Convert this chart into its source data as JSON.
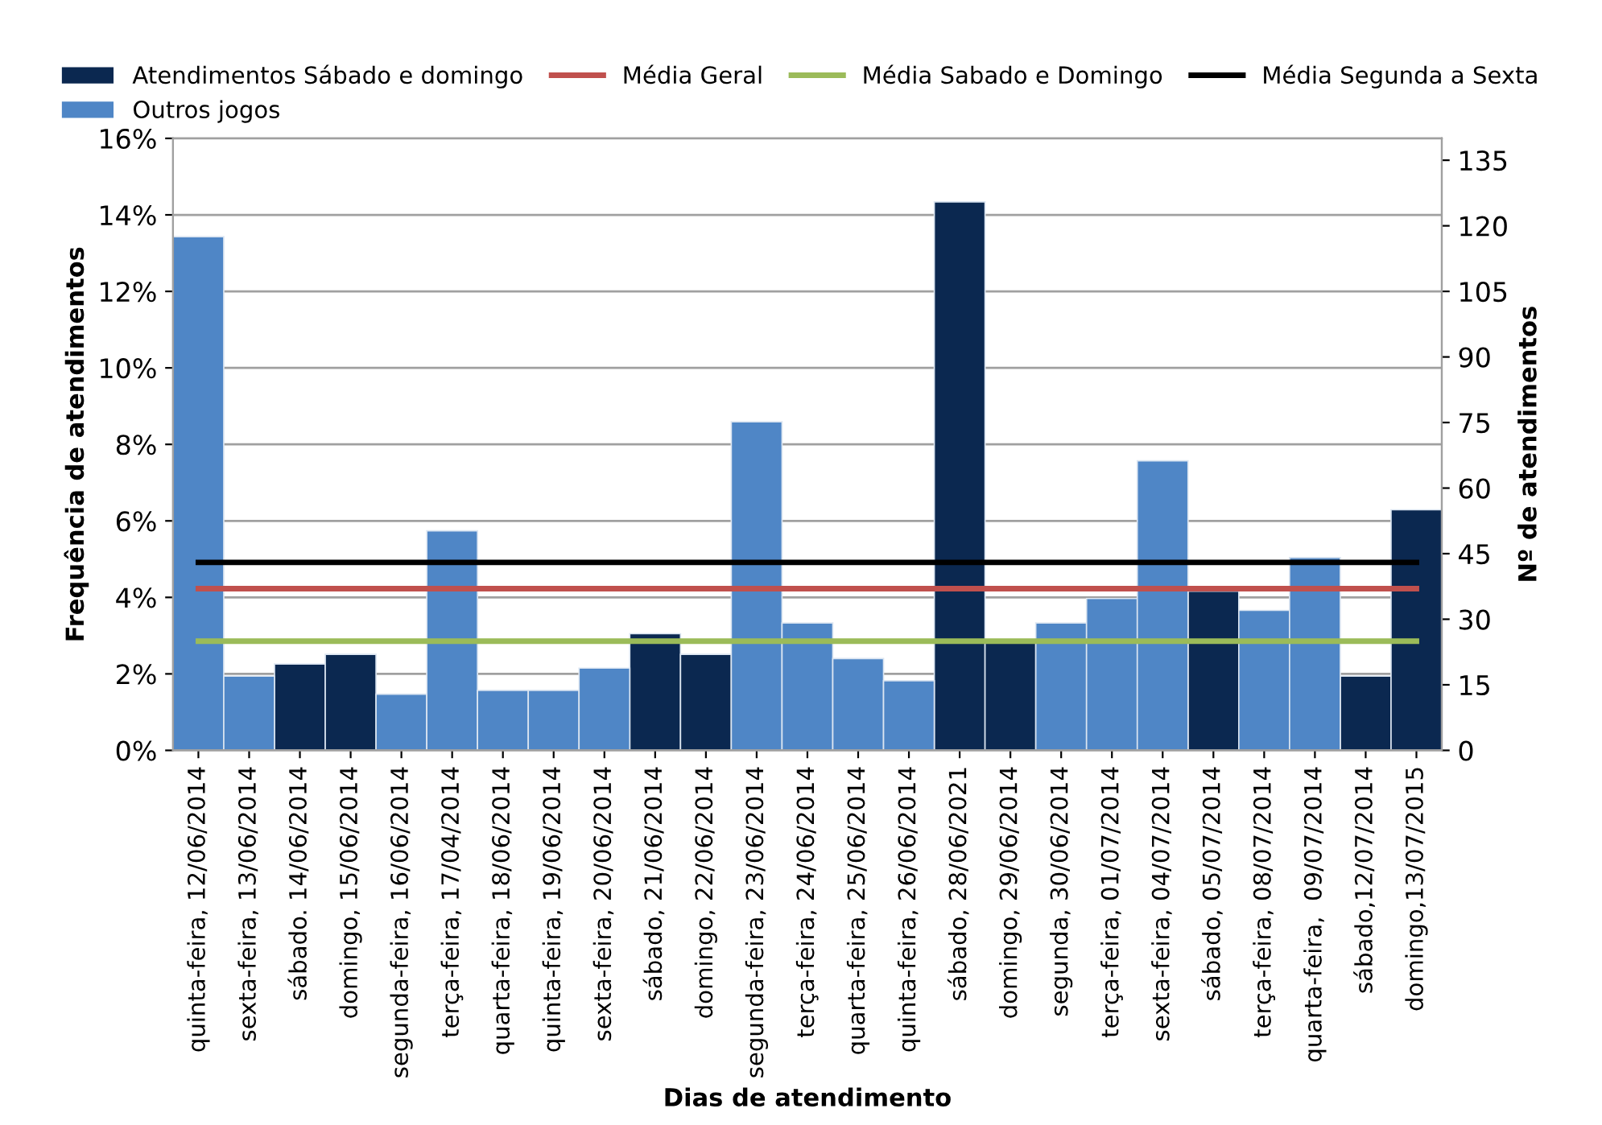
{
  "chart_data": {
    "type": "bar",
    "xlabel": "Dias de atendimento",
    "ylabel": "Frequência de atendimentos",
    "y2label": "Nº de atendimentos",
    "categories": [
      "quinta-feira, 12/06/2014",
      "sexta-feira, 13/06/2014",
      "sábado. 14/06/2014",
      "domingo, 15/06/2014",
      "segunda-feira, 16/06/2014",
      "terça-feira, 17/04/2014",
      "quarta-feira, 18/06/2014",
      "quinta-feira, 19/06/2014",
      "sexta-feira, 20/06/2014",
      "sábado, 21/06/2014",
      "domingo, 22/06/2014",
      "segunda-feira, 23/06/2014",
      "terça-feira, 24/06/2014",
      "quarta-feira, 25/06/2014",
      "quinta-feira, 26/06/2014",
      "sábado, 28/06/2021",
      "domingo, 29/06/2014",
      "segunda, 30/06/2014",
      "terça-feira, 01/07/2014",
      "sexta-feira, 04/07/2014",
      "sábado, 05/07/2014",
      "terça-feira, 08/07/2014",
      "quarta-feira,  09/07/2014",
      "sábado,12/07/2014",
      "domingo,13/07/2015"
    ],
    "series": [
      {
        "name": "Atendimentos Sábado e domingo",
        "color": "#0b2850",
        "values": [
          null,
          null,
          2.26,
          2.51,
          null,
          null,
          null,
          null,
          null,
          3.05,
          2.51,
          null,
          null,
          null,
          null,
          14.34,
          2.81,
          null,
          null,
          null,
          4.16,
          null,
          null,
          1.94,
          6.29
        ]
      },
      {
        "name": "Outros jogos",
        "color": "#4f86c6",
        "values": [
          13.43,
          1.94,
          null,
          null,
          1.47,
          5.74,
          1.57,
          1.57,
          2.15,
          null,
          null,
          8.59,
          3.33,
          2.4,
          1.82,
          null,
          null,
          3.33,
          3.97,
          7.57,
          null,
          3.66,
          5.04,
          null,
          null
        ]
      },
      {
        "name": "Média Geral",
        "type": "line",
        "axis": "y2",
        "color": "#c0504d",
        "values": [
          37,
          37,
          37,
          37,
          37,
          37,
          37,
          37,
          37,
          37,
          37,
          37,
          37,
          37,
          37,
          37,
          37,
          37,
          37,
          37,
          37,
          37,
          37,
          37,
          37
        ]
      },
      {
        "name": "Média Sabado e Domingo",
        "type": "line",
        "axis": "y2",
        "color": "#9bbb59",
        "values": [
          25,
          25,
          25,
          25,
          25,
          25,
          25,
          25,
          25,
          25,
          25,
          25,
          25,
          25,
          25,
          25,
          25,
          25,
          25,
          25,
          25,
          25,
          25,
          25,
          25
        ]
      },
      {
        "name": "Média Segunda a Sexta",
        "type": "line",
        "axis": "y2",
        "color": "#000000",
        "values": [
          43,
          43,
          43,
          43,
          43,
          43,
          43,
          43,
          43,
          43,
          43,
          43,
          43,
          43,
          43,
          43,
          43,
          43,
          43,
          43,
          43,
          43,
          43,
          43,
          43
        ]
      }
    ],
    "ylim": [
      0,
      16
    ],
    "yticks": [
      {
        "value": 0,
        "label": "0%"
      },
      {
        "value": 2,
        "label": "2%"
      },
      {
        "value": 4,
        "label": "4%"
      },
      {
        "value": 6,
        "label": "6%"
      },
      {
        "value": 8,
        "label": "8%"
      },
      {
        "value": 10,
        "label": "10%"
      },
      {
        "value": 12,
        "label": "12%"
      },
      {
        "value": 14,
        "label": "14%"
      },
      {
        "value": 16,
        "label": "16%"
      }
    ],
    "y2lim": [
      0,
      140
    ],
    "y2ticks": [
      0,
      15,
      30,
      45,
      60,
      75,
      90,
      105,
      120,
      135
    ],
    "grid": "y",
    "legend": "top",
    "marker": "none",
    "line_style": "solid"
  }
}
